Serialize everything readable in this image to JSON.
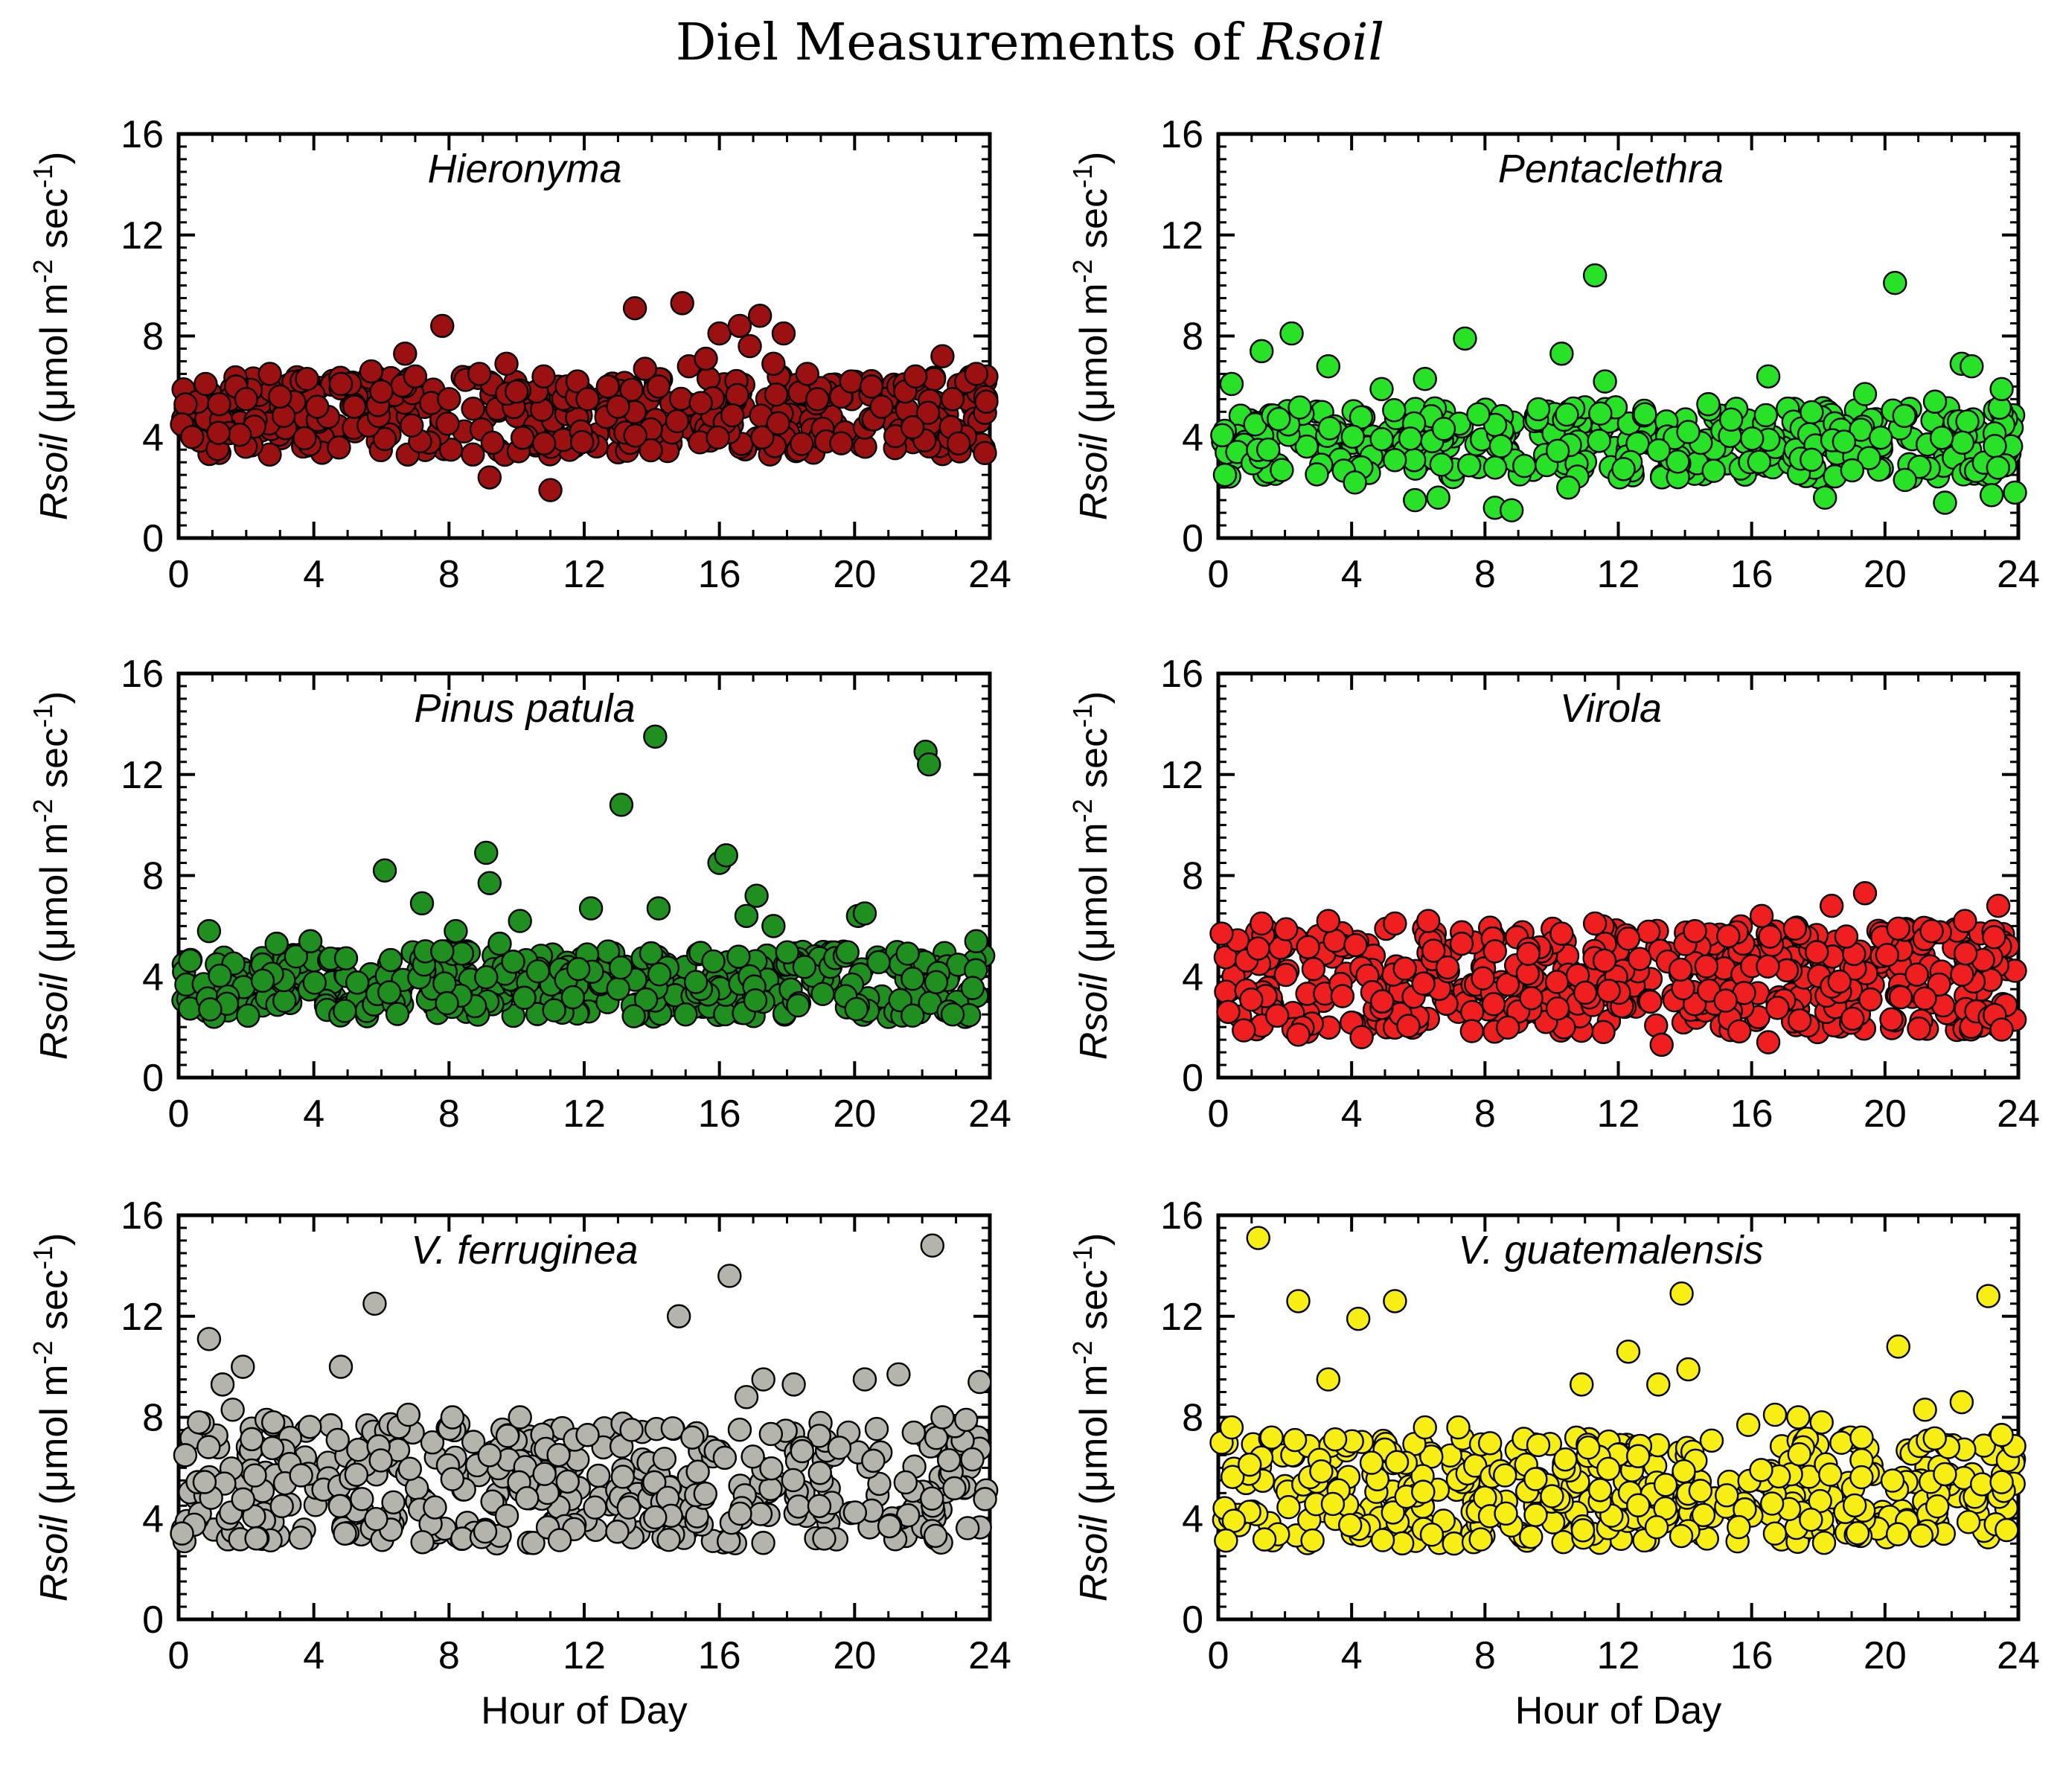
{
  "title_prefix": "Diel Measurements of ",
  "title_italic": "Rsoil",
  "chart_data": [
    {
      "type": "scatter",
      "title": "Hieronyma",
      "xlabel": "",
      "ylabel_italic": "Rsoil",
      "ylabel_rest": " (μmol m",
      "ylabel_exp1": "-2",
      "ylabel_mid": " sec",
      "ylabel_exp2": "-1",
      "ylabel_end": ")",
      "xlim": [
        0,
        24
      ],
      "ylim": [
        0,
        16
      ],
      "xticks": [
        "0",
        "4",
        "8",
        "12",
        "16",
        "20",
        "24"
      ],
      "yticks": [
        "0",
        "4",
        "8",
        "12",
        "16"
      ],
      "color": "#9b1111",
      "points": {
        "x": [
          0.1,
          0.4,
          0.8,
          1.2,
          1.7,
          2.0,
          2.7,
          3.0,
          3.8,
          4.1,
          4.8,
          5.2,
          5.7,
          6.0,
          6.7,
          7.0,
          7.8,
          8.0,
          8.9,
          9.2,
          9.7,
          10.0,
          10.8,
          11.0,
          11.8,
          12.1,
          12.7,
          13.0,
          13.5,
          13.8,
          14.2,
          14.9,
          15.1,
          15.6,
          16.0,
          16.6,
          16.9,
          17.2,
          17.6,
          17.9,
          18.6,
          18.9,
          19.6,
          19.9,
          20.5,
          20.8,
          21.5,
          21.8,
          22.6,
          22.9,
          23.6,
          23.9
        ],
        "y": [
          4.5,
          4.0,
          6.1,
          5.3,
          6.0,
          5.5,
          6.5,
          5.6,
          6.3,
          5.2,
          6.1,
          5.2,
          6.6,
          5.8,
          7.3,
          6.4,
          8.4,
          5.5,
          6.5,
          2.4,
          6.9,
          5.8,
          6.4,
          1.9,
          6.2,
          5.5,
          6.0,
          5.2,
          9.1,
          6.7,
          6.0,
          9.3,
          6.8,
          7.1,
          8.1,
          8.4,
          7.6,
          8.8,
          6.9,
          8.1,
          6.5,
          5.5,
          5.6,
          6.2,
          6.0,
          5.2,
          5.8,
          6.4,
          7.2,
          5.5,
          6.5,
          5.4
        ]
      }
    },
    {
      "type": "scatter",
      "title": "Pentaclethra",
      "xlabel": "",
      "ylabel_italic": "Rsoil",
      "ylabel_rest": " (μmol m",
      "ylabel_exp1": "-2",
      "ylabel_mid": " sec",
      "ylabel_exp2": "-1",
      "ylabel_end": ")",
      "xlim": [
        0,
        24
      ],
      "ylim": [
        0,
        16
      ],
      "xticks": [
        "0",
        "4",
        "8",
        "12",
        "16",
        "20",
        "24"
      ],
      "yticks": [
        "0",
        "4",
        "8",
        "12",
        "16"
      ],
      "color": "#27e227",
      "points": {
        "x": [
          0.2,
          0.4,
          1.3,
          1.5,
          2.2,
          3.3,
          4.1,
          4.9,
          5.9,
          6.2,
          6.6,
          7.4,
          7.8,
          8.3,
          8.8,
          9.6,
          10.3,
          10.5,
          11.3,
          11.6,
          12.8,
          14.1,
          14.7,
          16.5,
          17.8,
          18.2,
          19.4,
          20.3,
          20.6,
          21.5,
          21.8,
          22.3,
          22.6,
          23.2,
          23.5,
          23.9
        ],
        "y": [
          2.5,
          6.1,
          7.4,
          3.5,
          8.1,
          6.8,
          2.2,
          5.9,
          1.5,
          6.3,
          1.6,
          7.9,
          4.9,
          1.2,
          1.1,
          5.1,
          7.3,
          2.0,
          10.4,
          6.2,
          4.9,
          4.2,
          5.3,
          6.4,
          3.1,
          1.6,
          5.7,
          10.1,
          2.3,
          5.4,
          1.4,
          6.9,
          6.8,
          1.7,
          5.9,
          1.8
        ]
      }
    },
    {
      "type": "scatter",
      "title": "Pinus patula",
      "xlabel": "",
      "ylabel_italic": "Rsoil",
      "ylabel_rest": " (μmol m",
      "ylabel_exp1": "-2",
      "ylabel_mid": " sec",
      "ylabel_exp2": "-1",
      "ylabel_end": ")",
      "xlim": [
        0,
        24
      ],
      "ylim": [
        0,
        16
      ],
      "xticks": [
        "0",
        "4",
        "8",
        "12",
        "16",
        "20",
        "24"
      ],
      "yticks": [
        "0",
        "4",
        "8",
        "12",
        "16"
      ],
      "color": "#1f8f1f",
      "points": {
        "x": [
          0.9,
          2.9,
          3.9,
          6.1,
          7.2,
          7.3,
          7.8,
          8.2,
          9.1,
          9.2,
          9.5,
          10.1,
          12.2,
          13.1,
          14.1,
          14.2,
          15.0,
          16.0,
          16.2,
          16.8,
          17.1,
          17.6,
          20.1,
          20.3,
          22.1,
          22.2,
          22.9,
          23.6
        ],
        "y": [
          5.8,
          5.3,
          5.4,
          8.2,
          6.9,
          5.0,
          5.0,
          5.8,
          8.9,
          7.7,
          5.3,
          6.2,
          6.7,
          10.8,
          13.5,
          6.7,
          2.5,
          8.5,
          8.8,
          6.4,
          7.2,
          6.0,
          6.4,
          6.5,
          12.9,
          12.4,
          2.5,
          5.4
        ]
      }
    },
    {
      "type": "scatter",
      "title": "Virola",
      "xlabel": "",
      "ylabel_italic": "Rsoil",
      "ylabel_rest": " (μmol m",
      "ylabel_exp1": "-2",
      "ylabel_mid": " sec",
      "ylabel_exp2": "-1",
      "ylabel_end": ")",
      "xlim": [
        0,
        24
      ],
      "ylim": [
        0,
        16
      ],
      "xticks": [
        "0",
        "4",
        "8",
        "12",
        "16",
        "20",
        "24"
      ],
      "yticks": [
        "0",
        "4",
        "8",
        "12",
        "16"
      ],
      "color": "#ef1f1f",
      "points": {
        "x": [
          0.1,
          0.3,
          1.3,
          2.4,
          3.3,
          4.3,
          5.3,
          6.3,
          7.3,
          8.3,
          9.3,
          10.3,
          11.3,
          12.3,
          13.3,
          14.3,
          15.3,
          16.3,
          16.5,
          17.3,
          18.4,
          19.4,
          20.4,
          21.4,
          22.4,
          23.4,
          23.5
        ],
        "y": [
          5.7,
          2.6,
          6.1,
          1.7,
          6.2,
          1.6,
          6.1,
          6.2,
          5.3,
          5.0,
          4.9,
          5.7,
          6.1,
          5.5,
          1.3,
          5.8,
          5.6,
          6.4,
          1.4,
          5.9,
          6.8,
          7.3,
          5.9,
          5.8,
          6.2,
          6.8,
          1.9
        ]
      }
    },
    {
      "type": "scatter",
      "title": "V. ferruginea",
      "xlabel": "Hour of Day",
      "ylabel_italic": "Rsoil",
      "ylabel_rest": " (μmol m",
      "ylabel_exp1": "-2",
      "ylabel_mid": " sec",
      "ylabel_exp2": "-1",
      "ylabel_end": ")",
      "xlim": [
        0,
        24
      ],
      "ylim": [
        0,
        16
      ],
      "xticks": [
        "0",
        "4",
        "8",
        "12",
        "16",
        "20",
        "24"
      ],
      "yticks": [
        "0",
        "4",
        "8",
        "12",
        "16"
      ],
      "color": "#b4b4ac",
      "points": {
        "x": [
          0.1,
          0.6,
          0.9,
          1.3,
          1.6,
          1.9,
          2.6,
          2.8,
          4.8,
          5.8,
          6.8,
          8.1,
          9.2,
          10.1,
          12.1,
          13.4,
          14.8,
          15.2,
          16.3,
          16.8,
          17.3,
          18.2,
          19.1,
          20.3,
          21.3,
          22.3,
          22.6,
          23.3,
          23.7
        ],
        "y": [
          3.4,
          7.8,
          11.1,
          9.3,
          8.3,
          10.0,
          7.9,
          7.8,
          10.0,
          12.5,
          8.1,
          8.0,
          6.5,
          8.0,
          7.3,
          7.5,
          12.0,
          7.2,
          13.6,
          8.8,
          9.5,
          9.3,
          3.2,
          9.5,
          9.7,
          14.8,
          8.0,
          7.9,
          9.4
        ]
      }
    },
    {
      "type": "scatter",
      "title": "V. guatemalensis",
      "xlabel": "Hour of Day",
      "ylabel_italic": "Rsoil",
      "ylabel_rest": " (μmol m",
      "ylabel_exp1": "-2",
      "ylabel_mid": " sec",
      "ylabel_exp2": "-1",
      "ylabel_end": ")",
      "xlim": [
        0,
        24
      ],
      "ylim": [
        0,
        16
      ],
      "xticks": [
        "0",
        "4",
        "8",
        "12",
        "16",
        "20",
        "24"
      ],
      "yticks": [
        "0",
        "4",
        "8",
        "12",
        "16"
      ],
      "color": "#f7ef14",
      "points": {
        "x": [
          0.1,
          0.4,
          1.2,
          1.6,
          2.3,
          2.4,
          3.3,
          4.2,
          4.6,
          5.3,
          6.2,
          7.2,
          8.6,
          9.6,
          10.9,
          11.1,
          12.3,
          13.2,
          13.9,
          14.1,
          15.9,
          16.7,
          17.4,
          18.1,
          19.3,
          20.4,
          21.2,
          22.3,
          23.1,
          23.5
        ],
        "y": [
          7.0,
          7.6,
          15.1,
          7.2,
          7.1,
          12.6,
          9.5,
          11.9,
          6.2,
          12.6,
          7.6,
          7.6,
          5.7,
          6.9,
          9.3,
          6.8,
          10.6,
          9.3,
          12.9,
          9.9,
          7.7,
          8.1,
          8.0,
          7.8,
          7.2,
          10.8,
          8.3,
          8.6,
          12.8,
          7.3
        ]
      }
    }
  ]
}
